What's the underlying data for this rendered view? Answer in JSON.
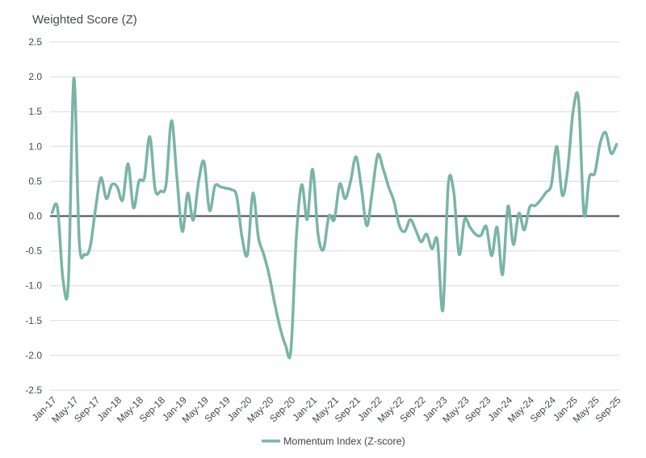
{
  "chart_data": {
    "type": "line",
    "title": "Weighted Score (Z)",
    "xlabel": "",
    "ylabel": "Weighted Score (Z)",
    "ylim": [
      -2.5,
      2.5
    ],
    "ytick_step": 0.5,
    "grid": "horizontal",
    "zero_line": true,
    "legend_position": "bottom-center",
    "yticks": [
      "2.5",
      "2.0",
      "1.5",
      "1.0",
      "0.5",
      "0.0",
      "-0.5",
      "-1.0",
      "-1.5",
      "-2.0",
      "-2.5"
    ],
    "xticks": [
      "Jan-17",
      "May-17",
      "Sep-17",
      "Jan-18",
      "May-18",
      "Sep-18",
      "Jan-19",
      "May-19",
      "Sep-19",
      "Jan-20",
      "May-20",
      "Sep-20",
      "Jan-21",
      "May-21",
      "Sep-21",
      "Jan-22",
      "May-22",
      "Sep-22",
      "Jan-23",
      "May-23",
      "Sep-23",
      "Jan-24",
      "May-24",
      "Sep-24",
      "Jan-25",
      "May-25",
      "Sep-25"
    ],
    "x": [
      "Jan-17",
      "Feb-17",
      "Mar-17",
      "Apr-17",
      "May-17",
      "Jun-17",
      "Jul-17",
      "Aug-17",
      "Sep-17",
      "Oct-17",
      "Nov-17",
      "Dec-17",
      "Jan-18",
      "Feb-18",
      "Mar-18",
      "Apr-18",
      "May-18",
      "Jun-18",
      "Jul-18",
      "Aug-18",
      "Sep-18",
      "Oct-18",
      "Nov-18",
      "Dec-18",
      "Jan-19",
      "Feb-19",
      "Mar-19",
      "Apr-19",
      "May-19",
      "Jun-19",
      "Jul-19",
      "Aug-19",
      "Sep-19",
      "Oct-19",
      "Nov-19",
      "Dec-19",
      "Jan-20",
      "Feb-20",
      "Mar-20",
      "Apr-20",
      "May-20",
      "Jun-20",
      "Jul-20",
      "Aug-20",
      "Sep-20",
      "Oct-20",
      "Nov-20",
      "Dec-20",
      "Jan-21",
      "Feb-21",
      "Mar-21",
      "Apr-21",
      "May-21",
      "Jun-21",
      "Jul-21",
      "Aug-21",
      "Sep-21",
      "Oct-21",
      "Nov-21",
      "Dec-21",
      "Jan-22",
      "Feb-22",
      "Mar-22",
      "Apr-22",
      "May-22",
      "Jun-22",
      "Jul-22",
      "Aug-22",
      "Sep-22",
      "Oct-22",
      "Nov-22",
      "Dec-22",
      "Jan-23",
      "Feb-23",
      "Mar-23",
      "Apr-23",
      "May-23",
      "Jun-23",
      "Jul-23",
      "Aug-23",
      "Sep-23",
      "Oct-23",
      "Nov-23",
      "Dec-23",
      "Jan-24",
      "Feb-24",
      "Mar-24",
      "Apr-24",
      "May-24",
      "Jun-24",
      "Jul-24",
      "Aug-24",
      "Sep-24",
      "Oct-24",
      "Nov-24",
      "Dec-24",
      "Jan-25",
      "Feb-25",
      "Mar-25",
      "Apr-25",
      "May-25",
      "Jun-25",
      "Jul-25",
      "Aug-25",
      "Sep-25"
    ],
    "series": [
      {
        "name": "Momentum Index (Z-score)",
        "color": "#7ab5a4",
        "values": [
          0.05,
          0.12,
          -0.9,
          -0.95,
          1.98,
          -0.35,
          -0.55,
          -0.45,
          0.1,
          0.55,
          0.25,
          0.45,
          0.42,
          0.23,
          0.75,
          0.12,
          0.5,
          0.55,
          1.14,
          0.38,
          0.36,
          0.45,
          1.37,
          0.55,
          -0.22,
          0.33,
          -0.06,
          0.5,
          0.78,
          0.08,
          0.43,
          0.42,
          0.4,
          0.38,
          0.29,
          -0.3,
          -0.55,
          0.33,
          -0.3,
          -0.55,
          -0.85,
          -1.25,
          -1.6,
          -1.85,
          -1.93,
          -0.3,
          0.45,
          -0.05,
          0.67,
          -0.25,
          -0.48,
          0.0,
          -0.05,
          0.46,
          0.25,
          0.5,
          0.85,
          0.4,
          -0.14,
          0.35,
          0.88,
          0.68,
          0.42,
          0.21,
          -0.14,
          -0.22,
          -0.05,
          -0.2,
          -0.37,
          -0.26,
          -0.47,
          -0.35,
          -1.35,
          0.45,
          0.35,
          -0.55,
          -0.05,
          -0.16,
          -0.26,
          -0.28,
          -0.15,
          -0.57,
          -0.16,
          -0.84,
          0.14,
          -0.41,
          0.04,
          -0.2,
          0.13,
          0.15,
          0.23,
          0.34,
          0.45,
          1.0,
          0.3,
          0.67,
          1.5,
          1.67,
          0.03,
          0.56,
          0.62,
          1.05,
          1.2,
          0.9,
          1.03
        ]
      }
    ]
  },
  "colors": {
    "accent": "#7ab5a4",
    "text": "#3e4a4e",
    "grid": "#d9d9d9",
    "zero_line": "#3e4a4d",
    "background": "#ffffff"
  }
}
